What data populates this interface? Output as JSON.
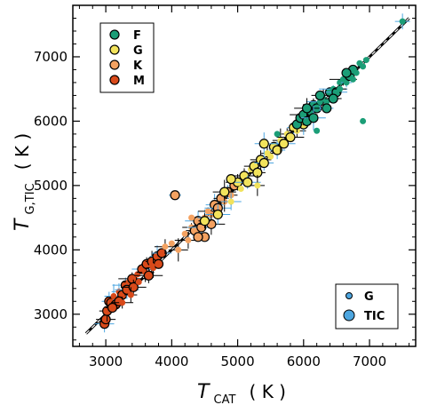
{
  "chart_data": {
    "type": "scatter",
    "xlim": [
      2500,
      7700
    ],
    "ylim": [
      2500,
      7800
    ],
    "x_ticks": [
      3000,
      4000,
      5000,
      6000,
      7000
    ],
    "y_ticks": [
      3000,
      4000,
      5000,
      6000,
      7000
    ],
    "xlabel": {
      "symbol": "T",
      "subscript": "CAT",
      "unit": "( K )"
    },
    "ylabel": {
      "symbol": "T",
      "subscript": "G,TIC",
      "unit": "( K )"
    },
    "grid": false,
    "reference_line": {
      "style": "dashed 1:1",
      "from": [
        2700,
        2700
      ],
      "to": [
        7600,
        7600
      ]
    },
    "legend_spectral": {
      "placement": "top-left",
      "entries": [
        {
          "label": "F",
          "color": "#1b9e77"
        },
        {
          "label": "G",
          "color": "#f2e35c"
        },
        {
          "label": "K",
          "color": "#f4a261"
        },
        {
          "label": "M",
          "color": "#d94a1a"
        }
      ]
    },
    "legend_source": {
      "placement": "bottom-right",
      "entries": [
        {
          "label": "G",
          "marker": "small",
          "color": "#4da6e0"
        },
        {
          "label": "TIC",
          "marker": "large",
          "color": "#4da6e0"
        }
      ]
    },
    "series": [
      {
        "name": "M",
        "color": "#d94a1a",
        "points": [
          [
            2980,
            2850
          ],
          [
            3000,
            2920
          ],
          [
            3020,
            3050
          ],
          [
            3050,
            3200
          ],
          [
            3080,
            3180
          ],
          [
            3120,
            3280
          ],
          [
            3150,
            3150
          ],
          [
            3200,
            3350
          ],
          [
            3250,
            3300
          ],
          [
            3300,
            3450
          ],
          [
            3320,
            3380
          ],
          [
            3350,
            3500
          ],
          [
            3400,
            3550
          ],
          [
            3420,
            3420
          ],
          [
            3480,
            3620
          ],
          [
            3500,
            3500
          ],
          [
            3550,
            3700
          ],
          [
            3600,
            3650
          ],
          [
            3620,
            3780
          ],
          [
            3650,
            3600
          ],
          [
            3700,
            3820
          ],
          [
            3720,
            3720
          ],
          [
            3780,
            3900
          ],
          [
            3800,
            3780
          ],
          [
            3850,
            3950
          ],
          [
            3200,
            3200
          ],
          [
            3100,
            3100
          ],
          [
            3380,
            3300
          ],
          [
            3700,
            3750
          ],
          [
            3250,
            3180
          ]
        ]
      },
      {
        "name": "K",
        "color": "#f4a261",
        "points": [
          [
            4050,
            4850
          ],
          [
            3900,
            4050
          ],
          [
            4000,
            4100
          ],
          [
            4100,
            4000
          ],
          [
            4200,
            4250
          ],
          [
            4250,
            4150
          ],
          [
            4300,
            4350
          ],
          [
            4350,
            4300
          ],
          [
            4400,
            4450
          ],
          [
            4450,
            4350
          ],
          [
            4500,
            4500
          ],
          [
            4550,
            4600
          ],
          [
            4600,
            4550
          ],
          [
            4650,
            4700
          ],
          [
            4700,
            4650
          ],
          [
            4750,
            4800
          ],
          [
            4800,
            4750
          ],
          [
            4850,
            4900
          ],
          [
            4900,
            4850
          ],
          [
            4950,
            5000
          ],
          [
            4500,
            4200
          ],
          [
            4600,
            4400
          ],
          [
            4400,
            4200
          ],
          [
            4300,
            4500
          ]
        ]
      },
      {
        "name": "G",
        "color": "#f2e35c",
        "points": [
          [
            4700,
            4550
          ],
          [
            4800,
            4900
          ],
          [
            4900,
            4750
          ],
          [
            5000,
            5050
          ],
          [
            5050,
            4950
          ],
          [
            5100,
            5150
          ],
          [
            5150,
            5050
          ],
          [
            5200,
            5250
          ],
          [
            5250,
            5300
          ],
          [
            5300,
            5200
          ],
          [
            5350,
            5400
          ],
          [
            5400,
            5350
          ],
          [
            5450,
            5500
          ],
          [
            5500,
            5450
          ],
          [
            5550,
            5600
          ],
          [
            5600,
            5550
          ],
          [
            5650,
            5700
          ],
          [
            5700,
            5650
          ],
          [
            5750,
            5800
          ],
          [
            5800,
            5750
          ],
          [
            5850,
            5900
          ],
          [
            5900,
            5850
          ],
          [
            5950,
            6000
          ],
          [
            6000,
            5950
          ],
          [
            5400,
            5650
          ],
          [
            5300,
            5000
          ],
          [
            4500,
            4450
          ],
          [
            4900,
            5100
          ]
        ]
      },
      {
        "name": "F",
        "color": "#1b9e77",
        "points": [
          [
            5900,
            5950
          ],
          [
            5950,
            6050
          ],
          [
            6000,
            6100
          ],
          [
            6050,
            6000
          ],
          [
            6100,
            6150
          ],
          [
            6150,
            6250
          ],
          [
            6200,
            6200
          ],
          [
            6250,
            6300
          ],
          [
            6300,
            6350
          ],
          [
            6350,
            6300
          ],
          [
            6400,
            6450
          ],
          [
            6450,
            6500
          ],
          [
            6500,
            6450
          ],
          [
            6550,
            6600
          ],
          [
            6600,
            6650
          ],
          [
            6650,
            6600
          ],
          [
            6700,
            6700
          ],
          [
            6750,
            6800
          ],
          [
            6800,
            6750
          ],
          [
            6850,
            6900
          ],
          [
            6900,
            6850
          ],
          [
            6950,
            6950
          ],
          [
            6050,
            6200
          ],
          [
            6150,
            6050
          ],
          [
            6250,
            6400
          ],
          [
            6350,
            6200
          ],
          [
            6450,
            6350
          ],
          [
            6550,
            6500
          ],
          [
            6650,
            6750
          ],
          [
            6750,
            6650
          ],
          [
            7500,
            7550
          ],
          [
            6200,
            5850
          ]
        ]
      }
    ],
    "outliers_g": [
      [
        6900,
        6000
      ],
      [
        5600,
        5800
      ]
    ]
  }
}
